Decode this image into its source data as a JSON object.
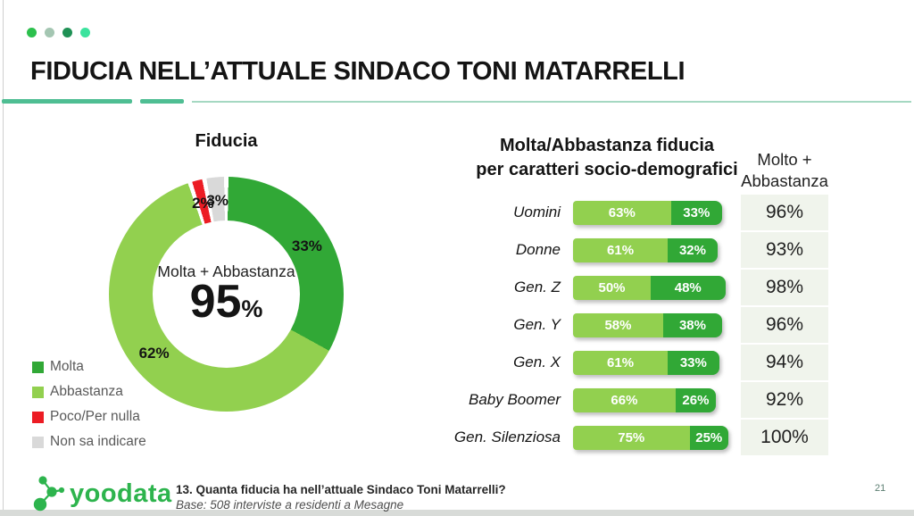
{
  "slide": {
    "header": {
      "title": "FIDUCIA NELL’ATTUALE SINDACO TONI MATARRELLI",
      "dot_colors": [
        "#2CC04D",
        "#A4C6B2",
        "#1F9155",
        "#3BE39E"
      ],
      "underline_dark": "#4FBE93",
      "underline_light": "#A5D8C2"
    },
    "footer": {
      "logo_text": "yoodata",
      "logo_green": "#2DB44D",
      "question": "13. Quanta fiducia ha nell’attuale Sindaco Toni Matarrelli?",
      "base_note": "Base: 508 interviste a residenti a Mesagne",
      "page_number": "21"
    }
  },
  "chart_data": [
    {
      "type": "pie",
      "subtype": "donut",
      "title": "Fiducia",
      "start_angle": "top",
      "direction": "clockwise",
      "slices": [
        {
          "label": "Molta",
          "value": 33,
          "color": "#31A836"
        },
        {
          "label": "Abbastanza",
          "value": 62,
          "color": "#92D04F"
        },
        {
          "label": "Poco/Per nulla",
          "value": 2,
          "color": "#EC1C24"
        },
        {
          "label": "Non sa indicare",
          "value": 3,
          "color": "#D9D9D9"
        }
      ],
      "center_label": "Molta + Abbastanza",
      "center_value": "95",
      "center_unit": "%",
      "legend_position": "bottom-left",
      "value_suffix": "%"
    },
    {
      "type": "bar",
      "orientation": "horizontal",
      "stacked": true,
      "title": "Molta/Abbastanza fiducia per caratteri socio-demografici",
      "title_lines": [
        "Molta/Abbastanza fiducia",
        "per caratteri socio-demografici"
      ],
      "categories": [
        "Uomini",
        "Donne",
        "Gen. Z",
        "Gen. Y",
        "Gen. X",
        "Baby Boomer",
        "Gen. Silenziosa"
      ],
      "series": [
        {
          "name": "Abbastanza",
          "color": "#92D04F",
          "values": [
            63,
            61,
            50,
            58,
            61,
            66,
            75
          ]
        },
        {
          "name": "Molta",
          "color": "#31A836",
          "values": [
            33,
            32,
            48,
            38,
            33,
            26,
            25
          ]
        }
      ],
      "value_suffix": "%",
      "xlim": [
        0,
        100
      ],
      "totals_column": {
        "header": "Molto + Abbastanza",
        "values": [
          "96%",
          "93%",
          "98%",
          "96%",
          "94%",
          "92%",
          "100%"
        ],
        "background": "#F0F4EC"
      }
    }
  ]
}
